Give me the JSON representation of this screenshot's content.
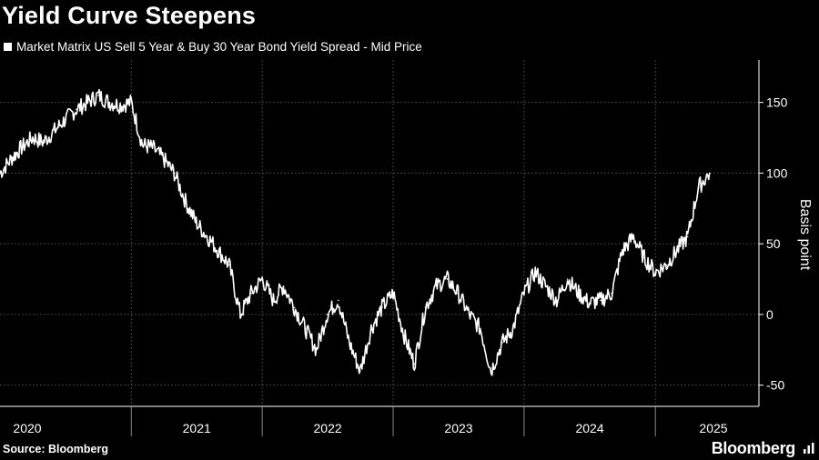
{
  "title": "Yield Curve Steepens",
  "source": "Source: Bloomberg",
  "brand": "Bloomberg",
  "colors": {
    "background": "#000000",
    "line": "#ffffff",
    "grid": "#444444"
  },
  "chart_data": {
    "type": "line",
    "title": "Yield Curve Steepens",
    "ylabel": "Basis point",
    "xlabel": "",
    "ylim": [
      -65,
      180
    ],
    "yticks": [
      150,
      100,
      50,
      0,
      -50
    ],
    "xticks": [
      "2020",
      "2021",
      "2022",
      "2023",
      "2024",
      "2025"
    ],
    "grid": true,
    "legend_position": "top-left",
    "series": [
      {
        "name": "Market Matrix US Sell 5 Year & Buy 30 Year Bond Yield Spread - Mid Price",
        "x": [
          "2020-01-01",
          "2020-02-01",
          "2020-03-01",
          "2020-04-01",
          "2020-05-01",
          "2020-06-01",
          "2020-07-01",
          "2020-08-01",
          "2020-09-01",
          "2020-10-01",
          "2020-11-01",
          "2020-12-01",
          "2021-01-01",
          "2021-02-01",
          "2021-03-01",
          "2021-04-01",
          "2021-05-01",
          "2021-06-01",
          "2021-07-01",
          "2021-08-01",
          "2021-09-01",
          "2021-10-01",
          "2021-11-01",
          "2021-12-01",
          "2022-01-01",
          "2022-02-01",
          "2022-03-01",
          "2022-04-01",
          "2022-05-01",
          "2022-06-01",
          "2022-07-01",
          "2022-08-01",
          "2022-09-01",
          "2022-10-01",
          "2022-11-01",
          "2022-12-01",
          "2023-01-01",
          "2023-02-01",
          "2023-03-01",
          "2023-04-01",
          "2023-05-01",
          "2023-06-01",
          "2023-07-01",
          "2023-08-01",
          "2023-09-01",
          "2023-10-01",
          "2023-11-01",
          "2023-12-01",
          "2024-01-01",
          "2024-02-01",
          "2024-03-01",
          "2024-04-01",
          "2024-05-01",
          "2024-06-01",
          "2024-07-01",
          "2024-08-01",
          "2024-09-01",
          "2024-10-01",
          "2024-11-01",
          "2024-12-01",
          "2025-01-01",
          "2025-02-01",
          "2025-03-01",
          "2025-04-01",
          "2025-05-01",
          "2025-06-01"
        ],
        "values": [
          100,
          110,
          118,
          125,
          122,
          130,
          138,
          145,
          150,
          155,
          150,
          148,
          150,
          120,
          118,
          110,
          100,
          80,
          65,
          55,
          45,
          35,
          0,
          15,
          25,
          10,
          20,
          5,
          -10,
          -25,
          0,
          10,
          -20,
          -40,
          -10,
          5,
          15,
          -15,
          -35,
          5,
          20,
          25,
          15,
          0,
          -10,
          -40,
          -20,
          -10,
          15,
          30,
          20,
          10,
          25,
          15,
          8,
          10,
          15,
          45,
          55,
          40,
          30,
          35,
          45,
          55,
          90,
          100
        ]
      }
    ]
  }
}
